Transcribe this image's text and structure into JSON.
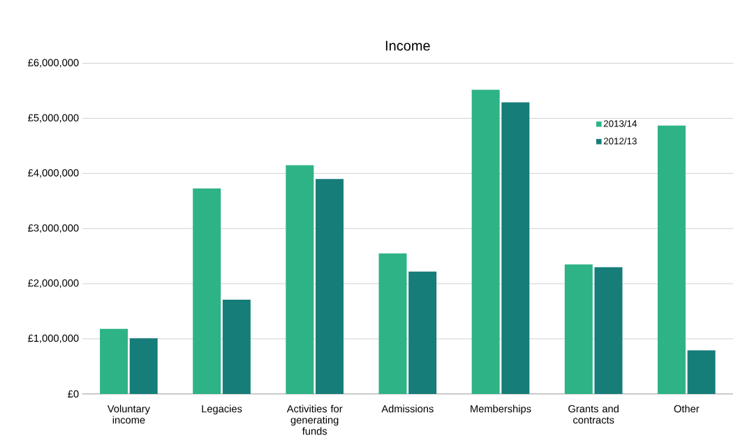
{
  "chart_data": {
    "type": "bar",
    "title": "Income",
    "categories": [
      "Voluntary income",
      "Legacies",
      "Activities for generating funds",
      "Admissions",
      "Memberships",
      "Grants and contracts",
      "Other"
    ],
    "series": [
      {
        "name": "2013/14",
        "color": "#2db386",
        "values": [
          1180000,
          3730000,
          4150000,
          2550000,
          5520000,
          2350000,
          4870000
        ]
      },
      {
        "name": "2012/13",
        "color": "#167d79",
        "values": [
          1010000,
          1710000,
          3900000,
          2220000,
          5290000,
          2300000,
          790000
        ]
      }
    ],
    "ylim": [
      0,
      6000000
    ],
    "yticks": [
      {
        "value": 0,
        "label": "£0"
      },
      {
        "value": 1000000,
        "label": "£1,000,000"
      },
      {
        "value": 2000000,
        "label": "£2,000,000"
      },
      {
        "value": 3000000,
        "label": "£3,000,000"
      },
      {
        "value": 4000000,
        "label": "£4,000,000"
      },
      {
        "value": 5000000,
        "label": "£5,000,000"
      },
      {
        "value": 6000000,
        "label": "£6,000,000"
      }
    ],
    "grid": "y",
    "legend": "top right"
  }
}
